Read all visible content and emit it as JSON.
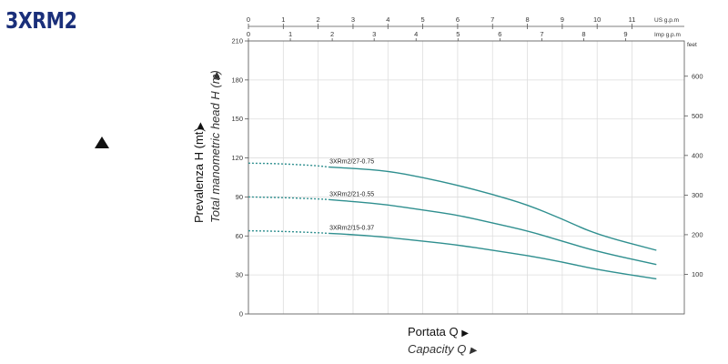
{
  "title": "3XRM2",
  "chart_data": {
    "type": "line",
    "xlabel": "Portata Q",
    "xlabel2": "Capacity Q",
    "ylabel": "Prevalenza H (mt)",
    "ylabel2": "Total manometric head H (m)",
    "arrow_glyph": "▶",
    "y_left": {
      "range": [
        0,
        210
      ],
      "ticks": [
        0,
        30,
        60,
        90,
        120,
        150,
        180,
        210
      ]
    },
    "y_right": {
      "unit": "feet",
      "range": [
        0,
        689
      ],
      "ticks": [
        100,
        200,
        300,
        400,
        500,
        600
      ]
    },
    "x_top_us": {
      "unit": "US g.p.m",
      "range": [
        0,
        12.5
      ],
      "ticks": [
        0,
        1,
        2,
        3,
        4,
        5,
        6,
        7,
        8,
        9,
        10,
        11
      ]
    },
    "x_top_imp": {
      "unit": "Imp g.p.m",
      "range": [
        0,
        10.4
      ],
      "ticks": [
        0,
        1,
        2,
        3,
        4,
        5,
        6,
        7,
        8,
        9
      ]
    },
    "grid": true,
    "series": [
      {
        "name": "3XRm2/27-0.75",
        "color": "#2f8f8f",
        "dashed_until": 2.3,
        "x": [
          0,
          1,
          2,
          2.3,
          3,
          4,
          5,
          6,
          7,
          8,
          9,
          10,
          11.7
        ],
        "y": [
          116,
          115.5,
          114,
          113,
          112,
          110,
          105,
          99,
          92,
          84,
          73,
          61,
          49
        ]
      },
      {
        "name": "3XRm2/21-0.55",
        "color": "#2f8f8f",
        "dashed_until": 2.3,
        "x": [
          0,
          1,
          2,
          2.3,
          3,
          4,
          5,
          6,
          7,
          8,
          9,
          10,
          11.7
        ],
        "y": [
          90,
          89.5,
          88.5,
          88,
          86.5,
          84,
          80,
          76,
          70,
          64,
          56,
          48,
          38
        ]
      },
      {
        "name": "3XRm2/15-0.37",
        "color": "#2f8f8f",
        "dashed_until": 2.3,
        "x": [
          0,
          1,
          2,
          2.3,
          3,
          4,
          5,
          6,
          7,
          8,
          9,
          10,
          11.7
        ],
        "y": [
          64,
          63.5,
          62.5,
          62,
          61,
          59,
          56,
          53,
          49,
          45,
          40,
          34,
          27
        ]
      }
    ]
  }
}
